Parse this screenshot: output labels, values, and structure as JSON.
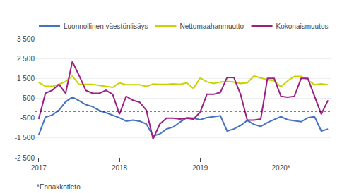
{
  "chart_data": {
    "type": "line",
    "categories": [
      "2017",
      null,
      null,
      null,
      null,
      null,
      null,
      null,
      null,
      null,
      null,
      null,
      "2018",
      null,
      null,
      null,
      null,
      null,
      null,
      null,
      null,
      null,
      null,
      null,
      "2019",
      null,
      null,
      null,
      null,
      null,
      null,
      null,
      null,
      null,
      null,
      null,
      "2020*",
      null,
      null,
      null,
      null,
      null,
      null,
      null
    ],
    "series": [
      {
        "name": "Luonnollinen väestönlisäys",
        "color": "#4472c4",
        "values": [
          -1350,
          -450,
          -350,
          -100,
          320,
          560,
          380,
          180,
          80,
          -120,
          -230,
          -350,
          -480,
          -650,
          -600,
          -650,
          -800,
          -1400,
          -1300,
          -1050,
          -950,
          -700,
          -480,
          -500,
          -580,
          -480,
          -420,
          -380,
          -1150,
          -1050,
          -870,
          -620,
          -820,
          -920,
          -720,
          -580,
          -430,
          -580,
          -620,
          -680,
          -480,
          -430,
          -1150,
          -1050
        ]
      },
      {
        "name": "Nettomaahanmuutto",
        "color": "#c8d400",
        "values": [
          1300,
          1100,
          1100,
          1200,
          1350,
          1620,
          1200,
          1200,
          1200,
          1150,
          1100,
          1050,
          1280,
          1180,
          1180,
          1180,
          1100,
          1220,
          1200,
          1200,
          1230,
          1200,
          1280,
          1000,
          1520,
          1330,
          1250,
          1320,
          1350,
          1320,
          1250,
          1280,
          1620,
          1520,
          1430,
          1380,
          1080,
          1380,
          1600,
          1600,
          1430,
          1180,
          1230,
          1180
        ]
      },
      {
        "name": "Kokonaismuutos",
        "color": "#9e1f82",
        "values": [
          -550,
          750,
          900,
          1200,
          750,
          2350,
          1650,
          900,
          750,
          750,
          900,
          700,
          -300,
          600,
          400,
          300,
          -100,
          -1550,
          -800,
          -500,
          -500,
          -550,
          -500,
          -550,
          -200,
          700,
          700,
          800,
          1550,
          1550,
          700,
          -600,
          -600,
          -550,
          1500,
          1500,
          600,
          550,
          600,
          1500,
          1500,
          600,
          -300,
          400
        ]
      }
    ],
    "reference_line": {
      "value": -150,
      "color": "black",
      "line_style": "dotted"
    },
    "ylim": [
      -2500,
      3500
    ],
    "yticks": [
      {
        "value": -2500,
        "label": "-2 500"
      },
      {
        "value": -1500,
        "label": "-1 500"
      },
      -500,
      500,
      {
        "value": 1500,
        "label": "1 500"
      },
      {
        "value": 2500,
        "label": "2 500"
      },
      {
        "value": 3500,
        "label": "3 500"
      }
    ],
    "grid": true,
    "legend": "top",
    "footnote": "*Ennakkotieto"
  }
}
